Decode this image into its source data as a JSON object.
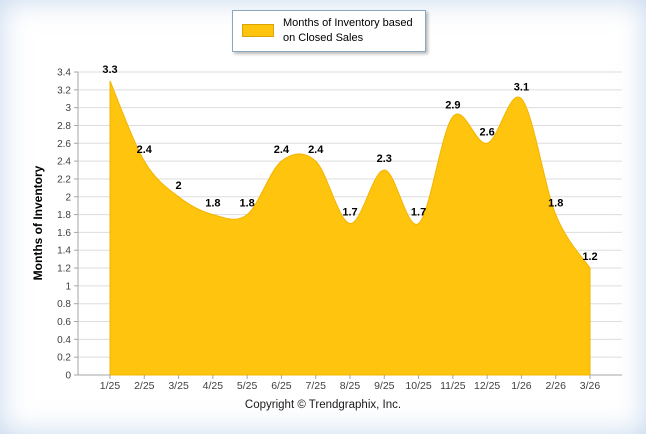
{
  "legend": {
    "label_line1": "Months of Inventory based",
    "label_line2": "on Closed Sales"
  },
  "ylabel": "Months of Inventory",
  "footer": {
    "copyright": "Copyright © Trendgraphix, Inc."
  },
  "colors": {
    "area_fill": "#FFC40D",
    "area_stroke": "#F2B400",
    "grid": "#dddddd",
    "axis": "#a6a6a6",
    "tick_text": "#404040",
    "data_label": "#000000"
  },
  "chart_data": {
    "type": "area",
    "categories": [
      "1/25",
      "2/25",
      "3/25",
      "4/25",
      "5/25",
      "6/25",
      "7/25",
      "8/25",
      "9/25",
      "10/25",
      "11/25",
      "12/25",
      "1/26",
      "2/26",
      "3/26"
    ],
    "values": [
      3.3,
      2.4,
      2,
      1.8,
      1.8,
      2.4,
      2.4,
      1.7,
      2.3,
      1.7,
      2.9,
      2.6,
      3.1,
      1.8,
      1.2
    ],
    "title": "",
    "xlabel": "",
    "ylabel": "Months of Inventory",
    "ylim": [
      0,
      3.4
    ],
    "ytick_step": 0.2,
    "grid": true,
    "legend": "Months of Inventory based on Closed Sales",
    "legend_position": "top",
    "smooth": true
  }
}
